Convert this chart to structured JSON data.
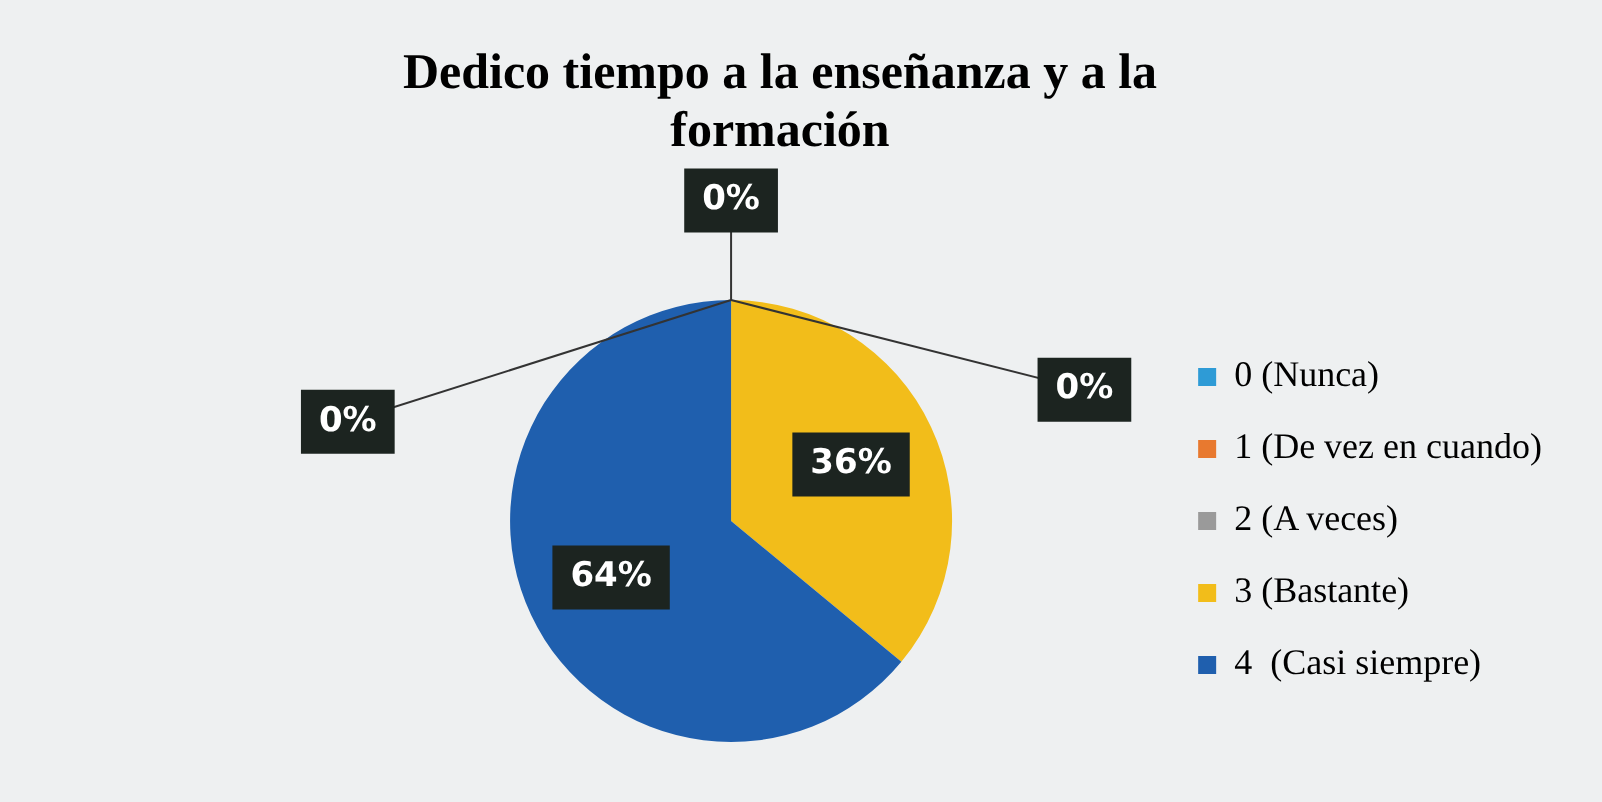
{
  "chart_data": {
    "type": "pie",
    "title": "Dedico tiempo a la enseñanza y a la formación",
    "categories": [
      "0 (Nunca)",
      "1 (De vez en cuando)",
      "2 (A veces)",
      "3 (Bastante)",
      "4  (Casi siempre)"
    ],
    "values": [
      0,
      0,
      0,
      36,
      64
    ],
    "colors": [
      "#2e9bd6",
      "#e8792f",
      "#9a9a9a",
      "#f2bd1a",
      "#1f5fae"
    ],
    "value_labels": [
      "0%",
      "0%",
      "0%",
      "36%",
      "64%"
    ],
    "legend": "right"
  }
}
